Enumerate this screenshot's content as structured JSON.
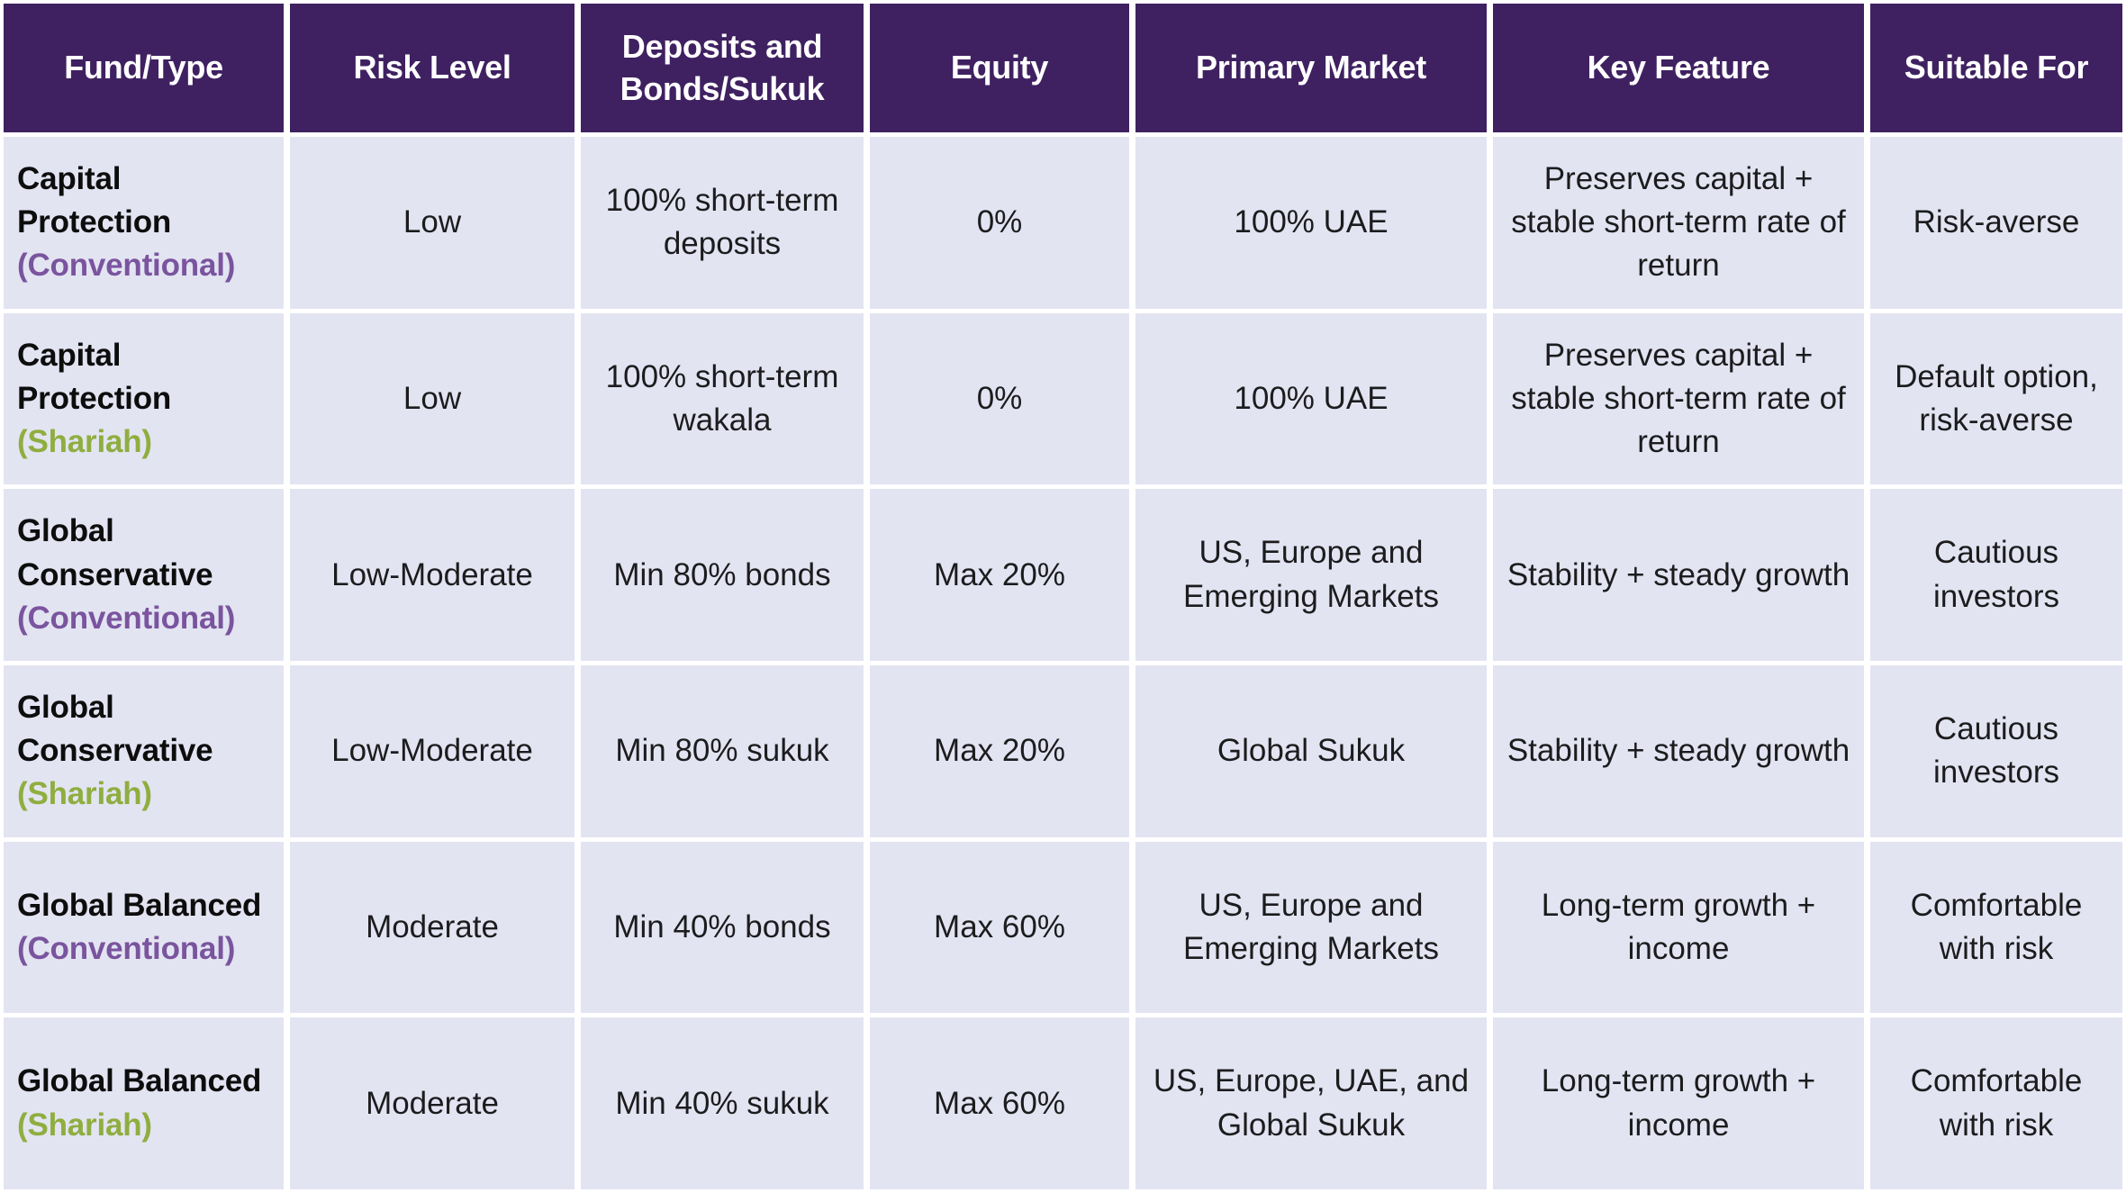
{
  "colors": {
    "header_bg": "#3F2161",
    "header_text": "#FFFFFF",
    "cell_bg": "#E3E4F2",
    "gutter": "#FFFFFF",
    "body_text": "#1C1C1E",
    "conventional": "#7A549E",
    "shariah": "#8FAE3F"
  },
  "table": {
    "columns": [
      "Fund/Type",
      "Risk Level",
      "Deposits and Bonds/Sukuk",
      "Equity",
      "Primary Market",
      "Key Feature",
      "Suitable For"
    ],
    "rows": [
      {
        "fund_name": "Capital Protection",
        "fund_variant": "(Conventional)",
        "risk_level": "Low",
        "deposits_bonds_sukuk": "100% short-term deposits",
        "equity": "0%",
        "primary_market": "100% UAE",
        "key_feature": "Preserves capital + stable short-term rate of return",
        "suitable_for": "Risk-averse"
      },
      {
        "fund_name": "Capital Protection",
        "fund_variant": "(Shariah)",
        "risk_level": "Low",
        "deposits_bonds_sukuk": "100% short-term wakala",
        "equity": "0%",
        "primary_market": "100% UAE",
        "key_feature": "Preserves capital + stable short-term rate of return",
        "suitable_for": "Default option, risk-averse"
      },
      {
        "fund_name": "Global Conservative",
        "fund_variant": "(Conventional)",
        "risk_level": "Low-Moderate",
        "deposits_bonds_sukuk": "Min 80% bonds",
        "equity": "Max 20%",
        "primary_market": "US, Europe and Emerging Markets",
        "key_feature": "Stability + steady growth",
        "suitable_for": "Cautious investors"
      },
      {
        "fund_name": "Global Conservative",
        "fund_variant": "(Shariah)",
        "risk_level": "Low-Moderate",
        "deposits_bonds_sukuk": "Min 80% sukuk",
        "equity": "Max 20%",
        "primary_market": "Global Sukuk",
        "key_feature": "Stability + steady growth",
        "suitable_for": "Cautious investors"
      },
      {
        "fund_name": "Global Balanced",
        "fund_variant": "(Conventional)",
        "risk_level": "Moderate",
        "deposits_bonds_sukuk": "Min 40% bonds",
        "equity": "Max 60%",
        "primary_market": "US, Europe and Emerging Markets",
        "key_feature": "Long-term growth + income",
        "suitable_for": "Comfortable with risk"
      },
      {
        "fund_name": "Global Balanced",
        "fund_variant": "(Shariah)",
        "risk_level": "Moderate",
        "deposits_bonds_sukuk": "Min 40% sukuk",
        "equity": "Max 60%",
        "primary_market": "US, Europe, UAE, and Global Sukuk",
        "key_feature": "Long-term growth + income",
        "suitable_for": "Comfortable with risk"
      }
    ]
  }
}
